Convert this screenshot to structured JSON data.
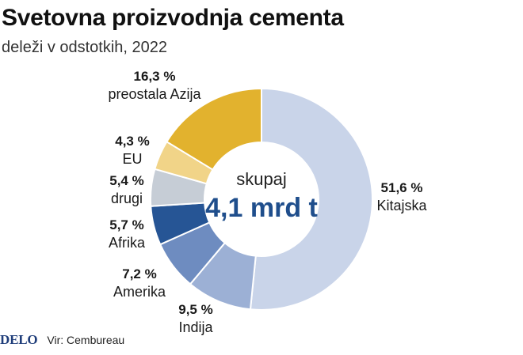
{
  "header": {
    "title": "Svetovna proizvodnja cementa",
    "subtitle": "deleži v odstotkih, 2022"
  },
  "chart_data": {
    "type": "pie",
    "donut": true,
    "center_label": "skupaj",
    "center_value": "4,1 mrd t",
    "series": [
      {
        "label": "Kitajska",
        "value": 51.6,
        "value_text": "51,6 %",
        "color": "#c9d4e9"
      },
      {
        "label": "Indija",
        "value": 9.5,
        "value_text": "9,5 %",
        "color": "#9cb0d5"
      },
      {
        "label": "Amerika",
        "value": 7.2,
        "value_text": "7,2 %",
        "color": "#6e8cc0"
      },
      {
        "label": "Afrika",
        "value": 5.7,
        "value_text": "5,7 %",
        "color": "#265595"
      },
      {
        "label": "drugi",
        "value": 5.4,
        "value_text": "5,4 %",
        "color": "#c6cdd6"
      },
      {
        "label": "EU",
        "value": 4.3,
        "value_text": "4,3 %",
        "color": "#f1d488"
      },
      {
        "label": "preostala Azija",
        "value": 16.3,
        "value_text": "16,3 %",
        "color": "#e2b22e"
      }
    ]
  },
  "footer": {
    "logo": "DELO",
    "source": "Vir: Cembureau"
  }
}
